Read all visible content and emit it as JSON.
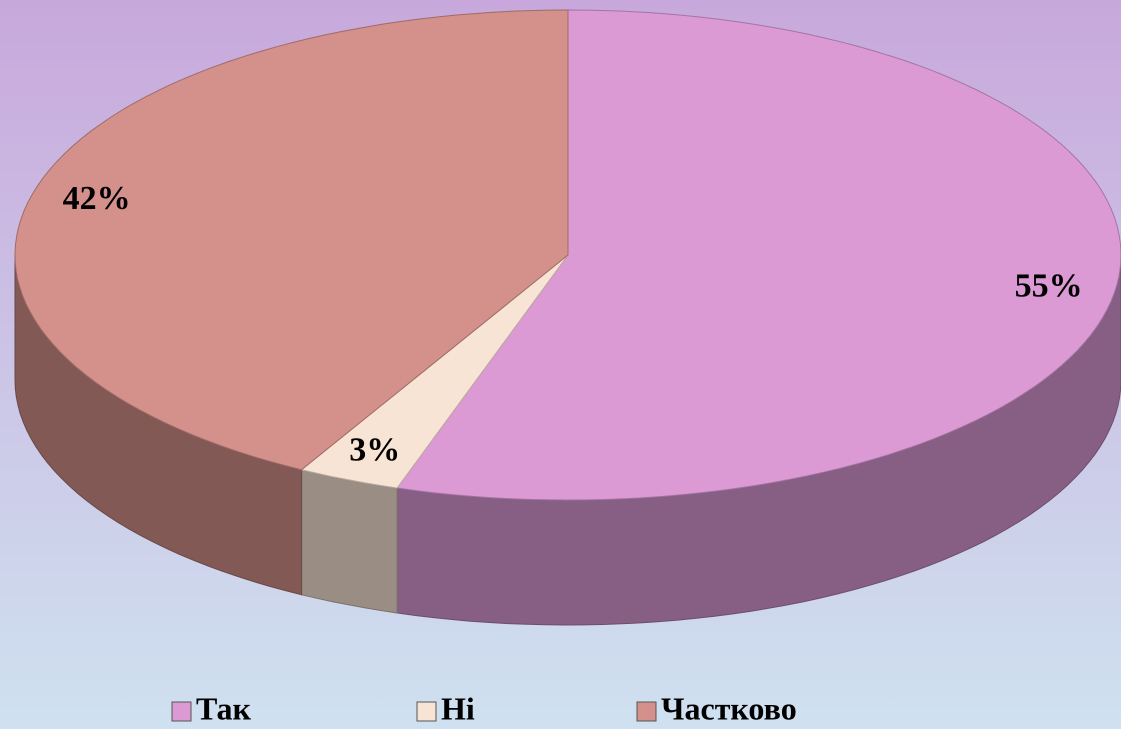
{
  "chart_data": {
    "type": "pie",
    "categories": [
      "Так",
      "Ні",
      "Частково"
    ],
    "values": [
      55,
      3,
      42
    ],
    "value_labels": [
      "55%",
      "3%",
      "42%"
    ],
    "colors": [
      "#dc9ad5",
      "#f8e4d4",
      "#d4908a"
    ],
    "legend": "bottom"
  }
}
